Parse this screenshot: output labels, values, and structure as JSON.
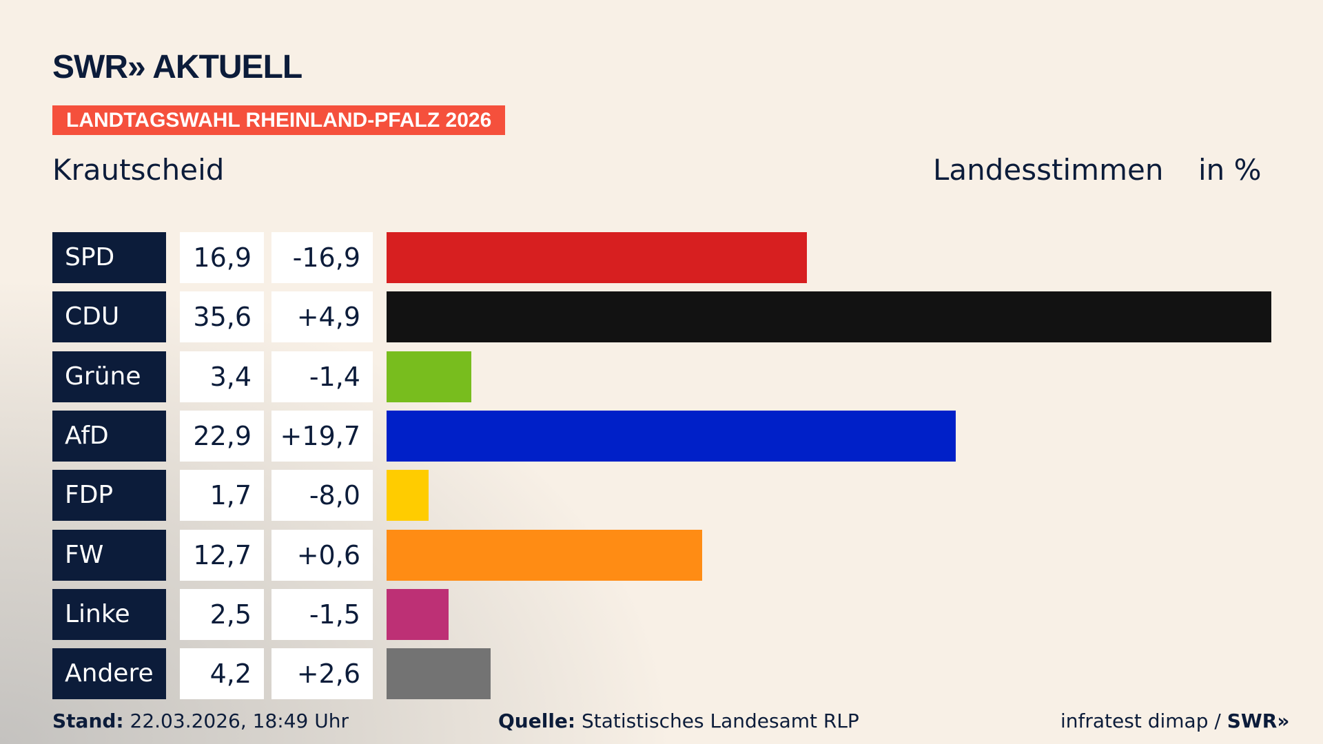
{
  "header": {
    "logo": "SWR» AKTUELL",
    "banner": "LANDTAGSWAHL RHEINLAND-PFALZ 2026",
    "location": "Krautscheid",
    "vote_type": "Landesstimmen",
    "unit": "in %"
  },
  "chart_data": {
    "type": "bar",
    "orientation": "horizontal",
    "xlim": [
      0,
      35.6
    ],
    "categories": [
      "SPD",
      "CDU",
      "Grüne",
      "AfD",
      "FDP",
      "FW",
      "Linke",
      "Andere"
    ],
    "values": [
      "16,9",
      "35,6",
      "3,4",
      "22,9",
      "1,7",
      "12,7",
      "2,5",
      "4,2"
    ],
    "numeric_values": [
      16.9,
      35.6,
      3.4,
      22.9,
      1.7,
      12.7,
      2.5,
      4.2
    ],
    "changes": [
      "-16,9",
      "+4,9",
      "-1,4",
      "+19,7",
      "-8,0",
      "+0,6",
      "-1,5",
      "+2,6"
    ],
    "colors": [
      "#d71f20",
      "#121212",
      "#78bd1e",
      "#0020c8",
      "#ffcc00",
      "#ff8c14",
      "#bd3075",
      "#737373"
    ]
  },
  "footer": {
    "stand_label": "Stand:",
    "stand": "22.03.2026, 18:49 Uhr",
    "source_label": "Quelle:",
    "source": "Statistisches Landesamt RLP",
    "credit": "infratest dimap / ",
    "credit_logo": "SWR»"
  }
}
